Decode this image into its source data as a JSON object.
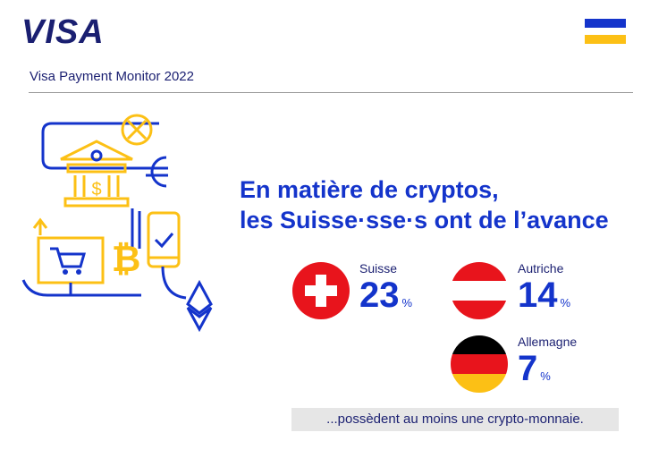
{
  "brand": {
    "logo_text": "VISA"
  },
  "header": {
    "subtitle": "Visa Payment Monitor 2022"
  },
  "headline": {
    "line1": "En matière de cryptos,",
    "line2": "les Suisse·sse·s ont de l’avance"
  },
  "stats": [
    {
      "country": "Suisse",
      "value": "23",
      "unit": "%"
    },
    {
      "country": "Autriche",
      "value": "14",
      "unit": "%"
    },
    {
      "country": "Allemagne",
      "value": "7",
      "unit": "%"
    }
  ],
  "footnote": "...possèdent au moins une crypto-monnaie.",
  "colors": {
    "visa_blue": "#1434cb",
    "visa_navy": "#1a1f71",
    "visa_gold": "#fcc015",
    "swiss_red": "#e8141c",
    "austria_red": "#e8141c",
    "germany_black": "#000000",
    "germany_red": "#e8141c",
    "germany_gold": "#fcc015"
  },
  "icons": [
    "bank-icon",
    "euro-icon",
    "no-currency-icon",
    "bitcoin-icon",
    "cart-icon",
    "phone-check-icon",
    "ethereum-icon",
    "arrow-up-icon"
  ]
}
